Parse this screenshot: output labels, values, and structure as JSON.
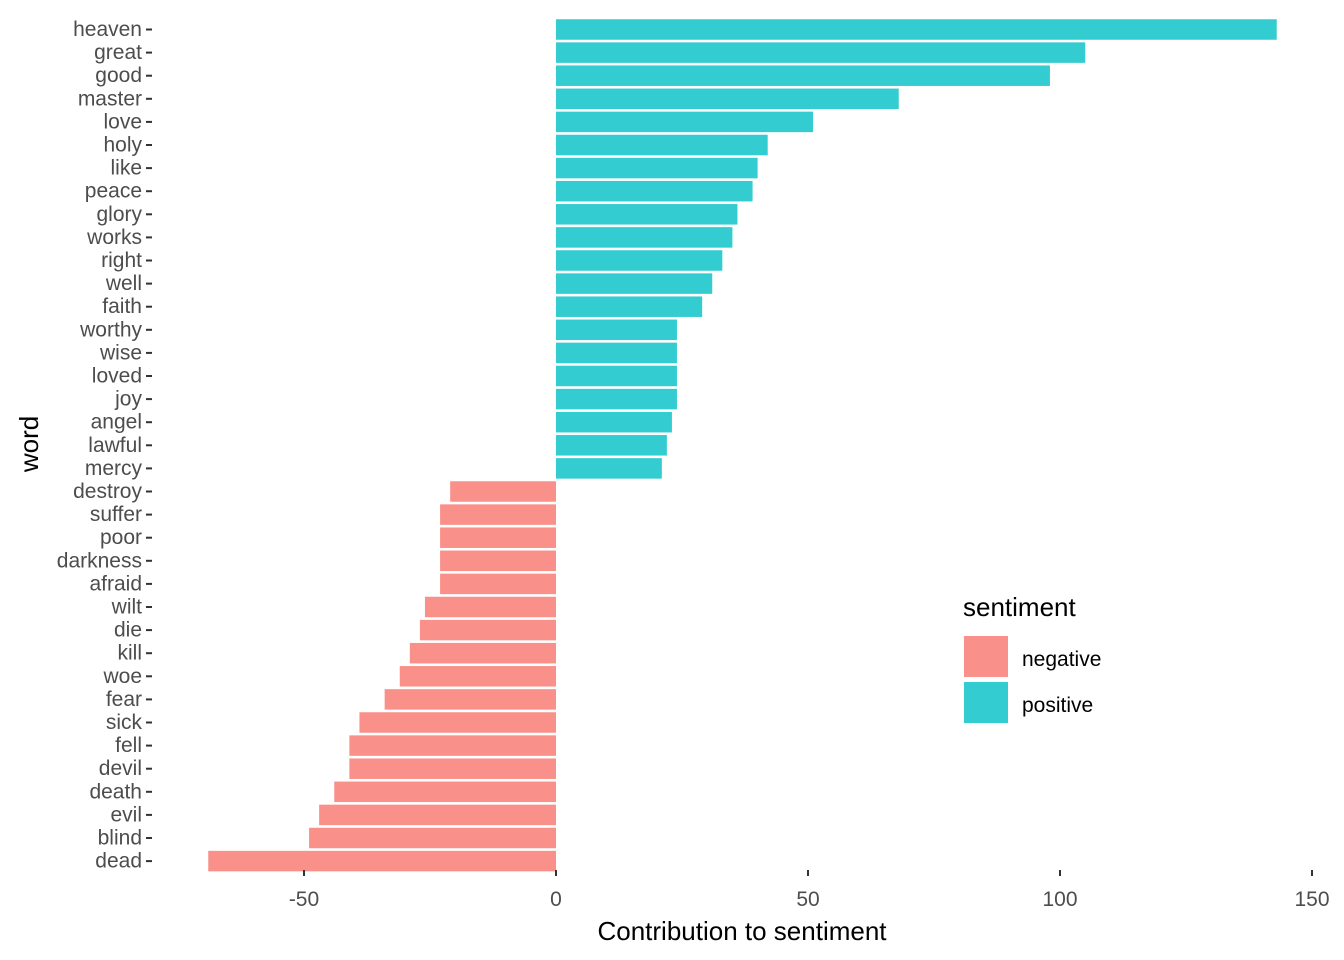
{
  "chart_data": {
    "type": "bar",
    "orientation": "horizontal",
    "xlabel": "Contribution to sentiment",
    "ylabel": "word",
    "xlim": [
      -69,
      150
    ],
    "x_ticks": [
      -50,
      0,
      50,
      100,
      150
    ],
    "x_tick_labels": [
      "-50",
      "0",
      "50",
      "100",
      "150"
    ],
    "grid": false,
    "legend": {
      "title": "sentiment",
      "position": "right",
      "entries": [
        {
          "label": "negative",
          "color": "#F8766D"
        },
        {
          "label": "positive",
          "color": "#00BFC4"
        }
      ]
    },
    "colors": {
      "negative": "#F8766D",
      "positive": "#00BFC4"
    },
    "bar_opacity": 0.8,
    "categories": [
      "heaven",
      "great",
      "good",
      "master",
      "love",
      "holy",
      "like",
      "peace",
      "glory",
      "works",
      "right",
      "well",
      "faith",
      "worthy",
      "wise",
      "loved",
      "joy",
      "angel",
      "lawful",
      "mercy",
      "destroy",
      "suffer",
      "poor",
      "darkness",
      "afraid",
      "wilt",
      "die",
      "kill",
      "woe",
      "fear",
      "sick",
      "fell",
      "devil",
      "death",
      "evil",
      "blind",
      "dead"
    ],
    "values": [
      143,
      105,
      98,
      68,
      51,
      42,
      40,
      39,
      36,
      35,
      33,
      31,
      29,
      24,
      24,
      24,
      24,
      23,
      22,
      21,
      -21,
      -23,
      -23,
      -23,
      -23,
      -26,
      -27,
      -29,
      -31,
      -34,
      -39,
      -41,
      -41,
      -44,
      -47,
      -49,
      -69
    ],
    "sentiment": [
      "positive",
      "positive",
      "positive",
      "positive",
      "positive",
      "positive",
      "positive",
      "positive",
      "positive",
      "positive",
      "positive",
      "positive",
      "positive",
      "positive",
      "positive",
      "positive",
      "positive",
      "positive",
      "positive",
      "positive",
      "negative",
      "negative",
      "negative",
      "negative",
      "negative",
      "negative",
      "negative",
      "negative",
      "negative",
      "negative",
      "negative",
      "negative",
      "negative",
      "negative",
      "negative",
      "negative",
      "negative"
    ]
  }
}
